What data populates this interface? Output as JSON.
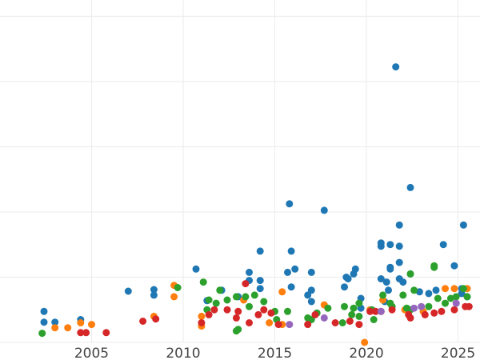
{
  "chart_data": {
    "type": "scatter",
    "title": "",
    "xlabel": "",
    "ylabel": "",
    "grid": true,
    "legend": "none",
    "xlim": [
      2000.0,
      2026.2
    ],
    "ylim": [
      0,
      10.5
    ],
    "x_ticks": [
      2005,
      2010,
      2015,
      2020,
      2025
    ],
    "x_tick_labels": [
      "2005",
      "2010",
      "2015",
      "2020",
      "2025"
    ],
    "y_gridlines": [
      0,
      2,
      4,
      6,
      8,
      10
    ],
    "series": [
      {
        "color": "#1f77b4",
        "points": [
          [
            2002.4,
            0.95
          ],
          [
            2002.4,
            0.62
          ],
          [
            2003.0,
            0.62
          ],
          [
            2004.4,
            0.7
          ],
          [
            2007.0,
            1.57
          ],
          [
            2008.4,
            1.62
          ],
          [
            2008.4,
            1.45
          ],
          [
            2010.7,
            2.25
          ],
          [
            2011.3,
            1.28
          ],
          [
            2012.1,
            1.6
          ],
          [
            2013.0,
            1.4
          ],
          [
            2013.6,
            1.9
          ],
          [
            2013.6,
            2.15
          ],
          [
            2014.2,
            1.9
          ],
          [
            2014.2,
            1.65
          ],
          [
            2014.2,
            2.8
          ],
          [
            2015.7,
            2.15
          ],
          [
            2015.8,
            4.25
          ],
          [
            2015.9,
            2.8
          ],
          [
            2015.9,
            1.7
          ],
          [
            2016.1,
            2.25
          ],
          [
            2016.8,
            1.45
          ],
          [
            2017.0,
            2.15
          ],
          [
            2017.0,
            1.6
          ],
          [
            2017.0,
            1.25
          ],
          [
            2017.7,
            4.05
          ],
          [
            2018.8,
            1.7
          ],
          [
            2018.9,
            2.0
          ],
          [
            2019.0,
            1.95
          ],
          [
            2019.3,
            2.1
          ],
          [
            2019.4,
            2.25
          ],
          [
            2019.7,
            1.35
          ],
          [
            2019.7,
            1.05
          ],
          [
            2020.8,
            2.95
          ],
          [
            2020.8,
            3.05
          ],
          [
            2020.8,
            1.95
          ],
          [
            2021.0,
            1.25
          ],
          [
            2021.1,
            1.85
          ],
          [
            2021.2,
            1.6
          ],
          [
            2021.3,
            3.0
          ],
          [
            2021.3,
            2.3
          ],
          [
            2021.3,
            2.25
          ],
          [
            2021.6,
            8.45
          ],
          [
            2021.8,
            3.6
          ],
          [
            2021.8,
            2.95
          ],
          [
            2021.8,
            2.45
          ],
          [
            2021.8,
            1.95
          ],
          [
            2022.0,
            1.85
          ],
          [
            2022.4,
            4.75
          ],
          [
            2022.4,
            2.1
          ],
          [
            2022.9,
            1.55
          ],
          [
            2023.4,
            1.5
          ],
          [
            2023.8,
            1.6
          ],
          [
            2024.2,
            3.0
          ],
          [
            2024.8,
            2.35
          ],
          [
            2025.2,
            1.65
          ],
          [
            2025.2,
            1.5
          ],
          [
            2025.3,
            3.6
          ],
          [
            2025.5,
            1.4
          ]
        ]
      },
      {
        "color": "#ff7f0e",
        "points": [
          [
            2003.0,
            0.45
          ],
          [
            2003.7,
            0.45
          ],
          [
            2004.4,
            0.6
          ],
          [
            2005.0,
            0.55
          ],
          [
            2008.4,
            0.8
          ],
          [
            2009.5,
            1.75
          ],
          [
            2009.5,
            1.4
          ],
          [
            2011.0,
            0.5
          ],
          [
            2011.0,
            0.8
          ],
          [
            2013.3,
            1.3
          ],
          [
            2014.7,
            0.6
          ],
          [
            2015.4,
            0.55
          ],
          [
            2015.4,
            1.55
          ],
          [
            2017.7,
            1.15
          ],
          [
            2019.9,
            0.0
          ],
          [
            2020.2,
            1.0
          ],
          [
            2020.9,
            1.3
          ],
          [
            2022.1,
            1.0
          ],
          [
            2023.1,
            0.95
          ],
          [
            2024.3,
            1.65
          ],
          [
            2024.8,
            1.65
          ],
          [
            2025.5,
            1.65
          ]
        ]
      },
      {
        "color": "#2ca02c",
        "points": [
          [
            2002.3,
            0.28
          ],
          [
            2009.7,
            1.68
          ],
          [
            2011.1,
            1.85
          ],
          [
            2011.3,
            1.0
          ],
          [
            2011.4,
            1.3
          ],
          [
            2011.8,
            1.2
          ],
          [
            2012.0,
            1.6
          ],
          [
            2012.4,
            1.3
          ],
          [
            2012.9,
            0.35
          ],
          [
            2012.9,
            1.4
          ],
          [
            2013.0,
            0.4
          ],
          [
            2013.4,
            1.4
          ],
          [
            2013.6,
            1.1
          ],
          [
            2013.9,
            1.45
          ],
          [
            2014.4,
            1.25
          ],
          [
            2015.0,
            0.95
          ],
          [
            2015.1,
            0.7
          ],
          [
            2015.7,
            0.95
          ],
          [
            2016.8,
            0.75
          ],
          [
            2017.0,
            0.7
          ],
          [
            2017.3,
            0.9
          ],
          [
            2017.9,
            1.05
          ],
          [
            2018.7,
            0.6
          ],
          [
            2018.8,
            1.1
          ],
          [
            2019.2,
            0.85
          ],
          [
            2019.3,
            1.05
          ],
          [
            2019.6,
            1.2
          ],
          [
            2019.6,
            0.8
          ],
          [
            2020.3,
            1.0
          ],
          [
            2020.4,
            0.7
          ],
          [
            2020.9,
            1.45
          ],
          [
            2021.3,
            1.2
          ],
          [
            2021.4,
            1.1
          ],
          [
            2022.0,
            1.45
          ],
          [
            2022.2,
            1.05
          ],
          [
            2022.4,
            1.0
          ],
          [
            2022.4,
            2.1
          ],
          [
            2022.6,
            1.6
          ],
          [
            2023.4,
            1.1
          ],
          [
            2023.7,
            2.3
          ],
          [
            2023.7,
            2.35
          ],
          [
            2023.9,
            1.35
          ],
          [
            2024.3,
            1.2
          ],
          [
            2024.6,
            1.35
          ],
          [
            2024.9,
            1.4
          ],
          [
            2025.3,
            1.65
          ],
          [
            2025.5,
            1.4
          ]
        ]
      },
      {
        "color": "#d62728",
        "points": [
          [
            2004.4,
            0.3
          ],
          [
            2004.7,
            0.3
          ],
          [
            2005.8,
            0.3
          ],
          [
            2007.8,
            0.65
          ],
          [
            2008.5,
            0.72
          ],
          [
            2011.0,
            0.6
          ],
          [
            2011.4,
            0.85
          ],
          [
            2011.7,
            1.0
          ],
          [
            2012.4,
            1.0
          ],
          [
            2012.9,
            0.75
          ],
          [
            2013.0,
            0.95
          ],
          [
            2013.4,
            1.8
          ],
          [
            2013.6,
            0.6
          ],
          [
            2014.1,
            0.85
          ],
          [
            2014.4,
            1.0
          ],
          [
            2014.8,
            0.9
          ],
          [
            2015.2,
            0.55
          ],
          [
            2016.8,
            0.55
          ],
          [
            2017.2,
            0.85
          ],
          [
            2018.3,
            0.6
          ],
          [
            2019.1,
            0.65
          ],
          [
            2019.6,
            0.55
          ],
          [
            2020.2,
            0.95
          ],
          [
            2020.5,
            0.95
          ],
          [
            2020.8,
            0.95
          ],
          [
            2021.4,
            1.0
          ],
          [
            2022.3,
            0.85
          ],
          [
            2022.4,
            0.75
          ],
          [
            2023.2,
            0.85
          ],
          [
            2023.7,
            0.9
          ],
          [
            2024.1,
            0.95
          ],
          [
            2024.8,
            1.0
          ],
          [
            2025.4,
            1.1
          ],
          [
            2025.6,
            1.1
          ]
        ]
      },
      {
        "color": "#9467bd",
        "points": [
          [
            2015.8,
            0.55
          ],
          [
            2017.7,
            0.75
          ],
          [
            2020.8,
            0.95
          ],
          [
            2022.6,
            1.05
          ],
          [
            2023.0,
            1.1
          ],
          [
            2024.9,
            1.2
          ]
        ]
      }
    ]
  }
}
